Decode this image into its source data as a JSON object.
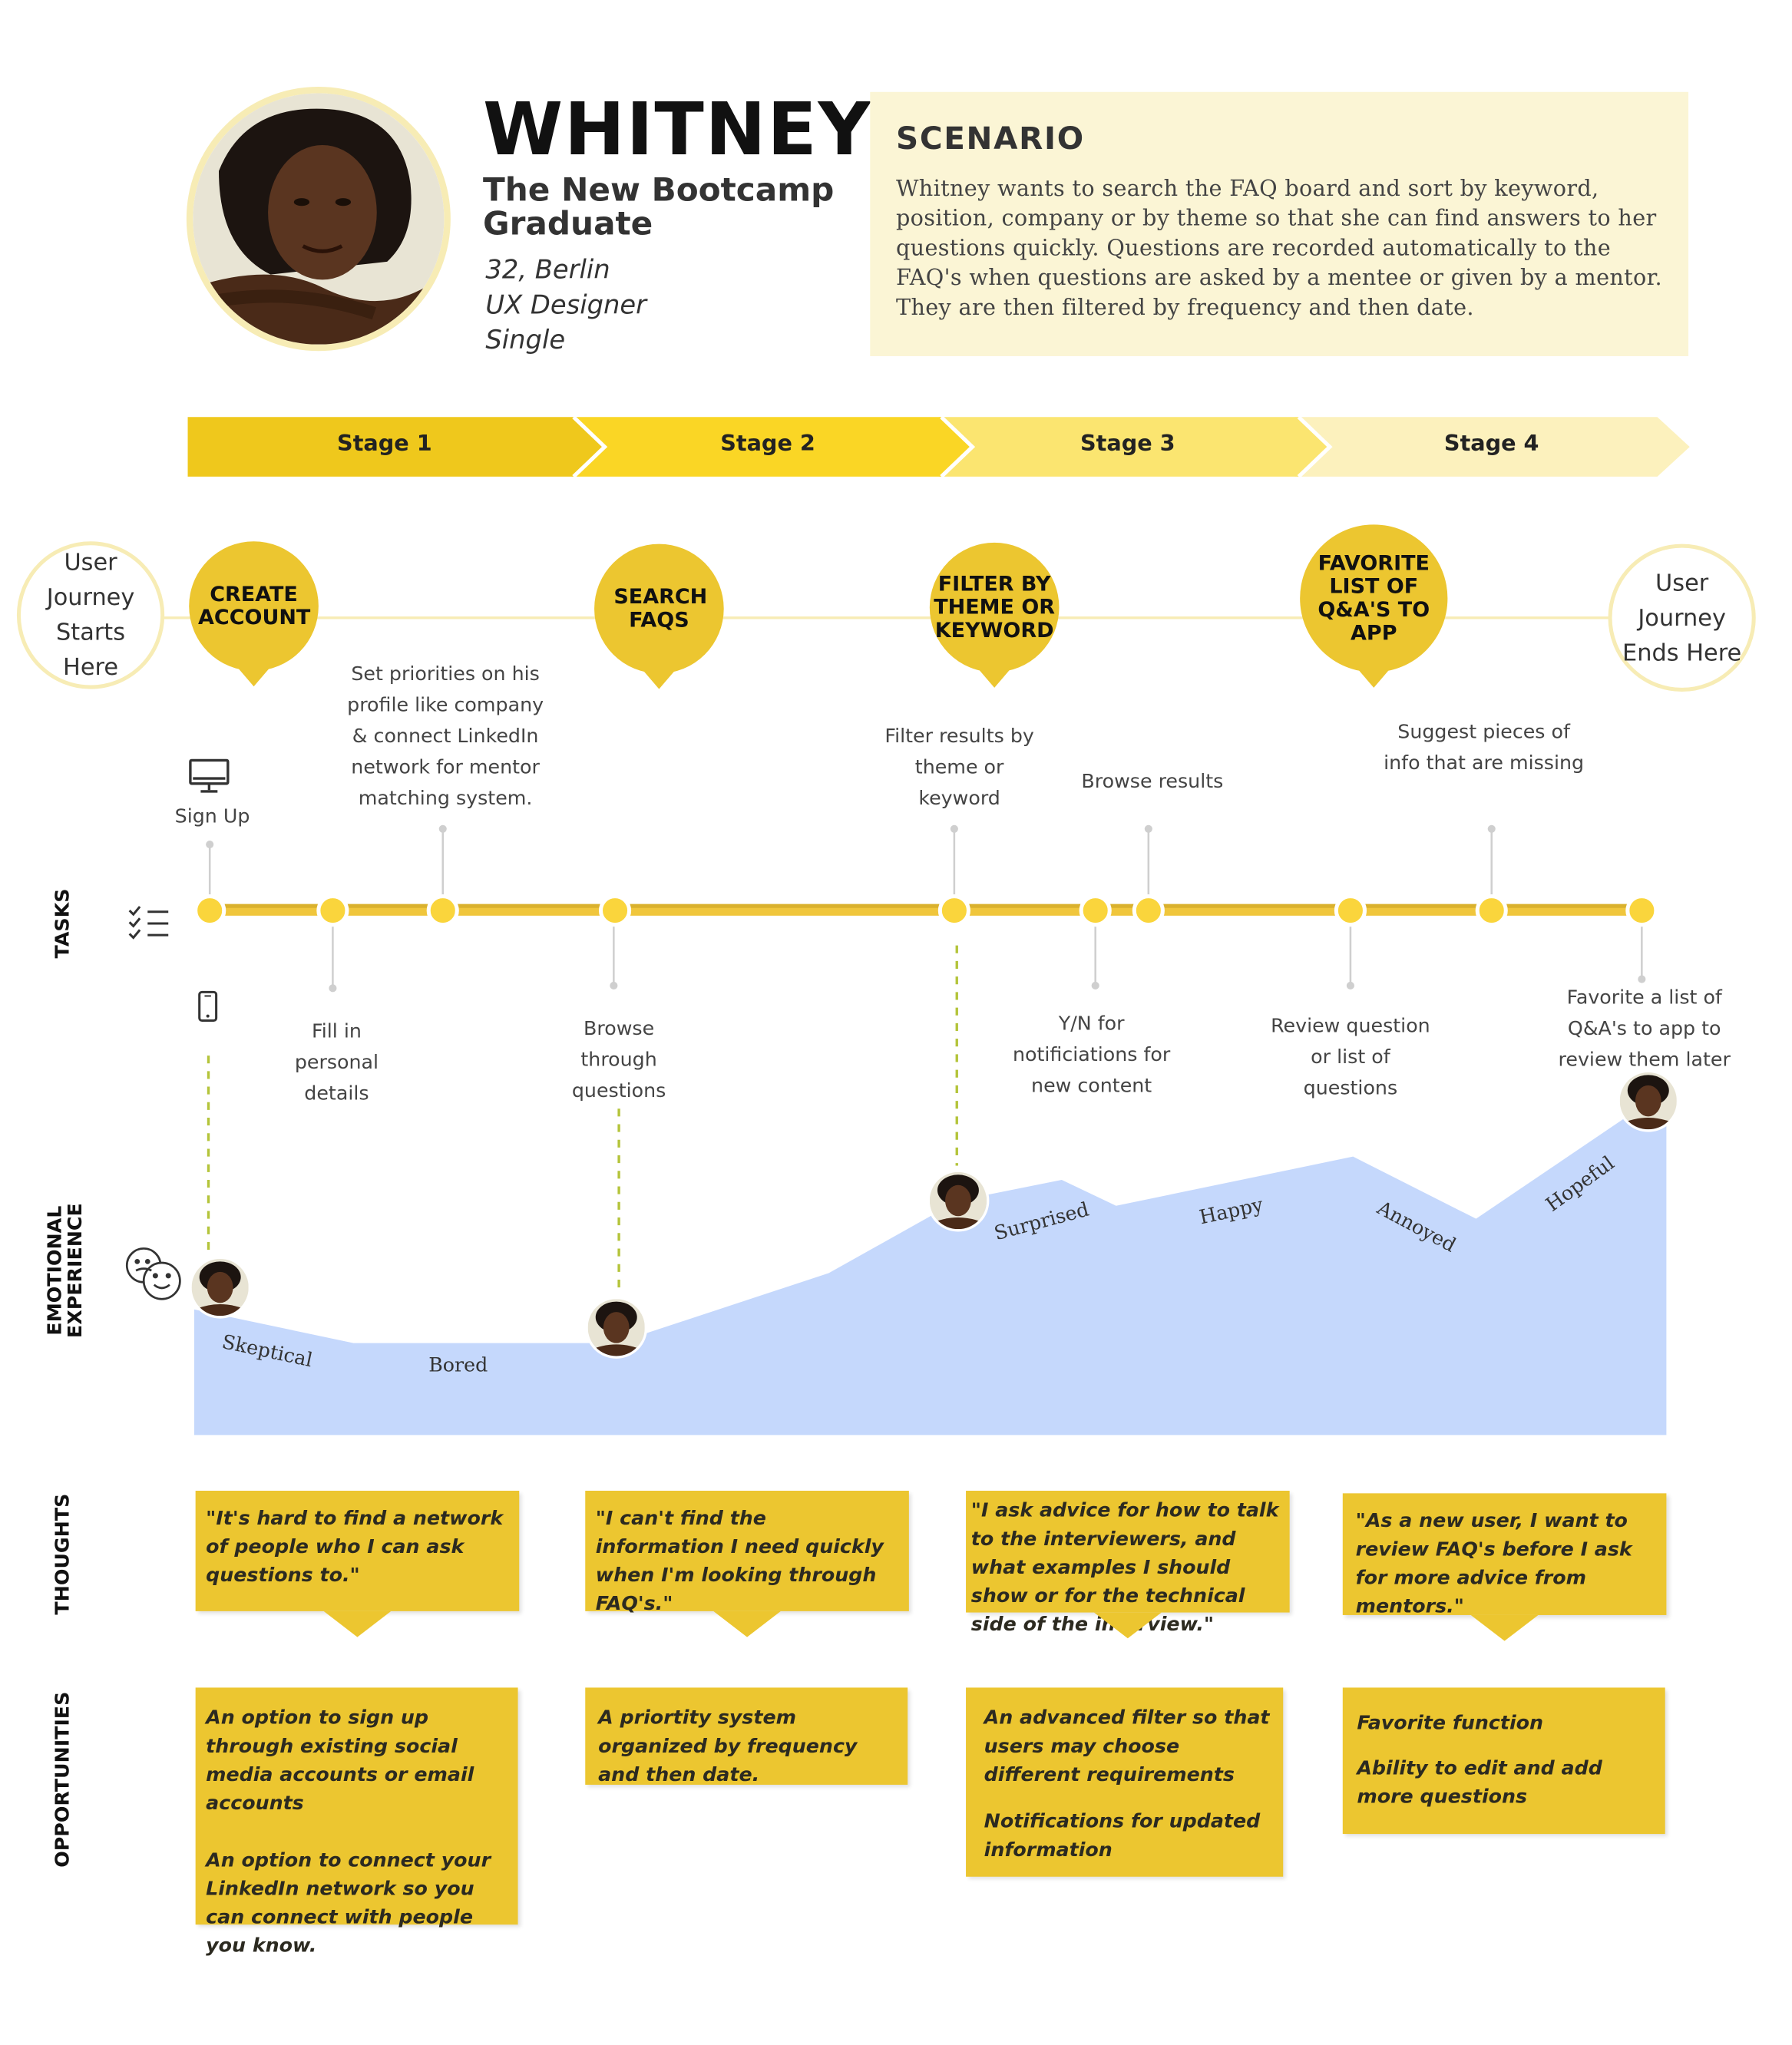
{
  "persona": {
    "name": "WHITNEY",
    "title": "The New Bootcamp Graduate",
    "age_city": "32, Berlin",
    "role": "UX Designer",
    "status": "Single"
  },
  "scenario": {
    "heading": "SCENARIO",
    "text": "Whitney wants to search the FAQ board and sort by keyword, position, company or by theme so that she can find answers to her questions quickly. Questions are recorded automatically to the FAQ's when questions are asked by a mentee or given by a mentor. They are then filtered by frequency and then date."
  },
  "stages": [
    "Stage 1",
    "Stage 2",
    "Stage 3",
    "Stage 4"
  ],
  "journey": {
    "start_label": "User Journey Starts Here",
    "end_label": "User Journey Ends Here",
    "steps": [
      "CREATE ACCOUNT",
      "SEARCH FAQS",
      "FILTER BY THEME OR KEYWORD",
      "FAVORITE LIST OF Q&A'S TO APP"
    ]
  },
  "row_labels": {
    "tasks": "TASKS",
    "emotional_line1": "EMOTIONAL",
    "emotional_line2": "EXPERIENCE",
    "thoughts": "THOUGHTS",
    "opportunities": "OPPORTUNITIES"
  },
  "tasks": {
    "sign_up": "Sign Up",
    "set_priorities": "Set priorities on his profile like company & connect LinkedIn network for mentor matching system.",
    "filter_results": "Filter results by theme or keyword",
    "browse_results": "Browse results",
    "suggest_pieces": "Suggest pieces of info that are missing",
    "fill_in": "Fill in personal details",
    "browse_through": "Browse through questions",
    "yn_notifications": "Y/N for notificiations for new content",
    "review_question": "Review question or list of questions",
    "favorite_list": "Favorite a list of Q&A's to app to review them later"
  },
  "emotions": [
    "Skeptical",
    "Bored",
    "Surprised",
    "Happy",
    "Annoyed",
    "Hopeful"
  ],
  "thoughts": [
    "\"It's hard to find a network of people who I can ask questions to.\"",
    "\"I can't find the information I need quickly when I'm looking through FAQ's.\"",
    "\"I ask advice for how to talk to the interviewers, and what examples I should show or for the technical side of the interview.\"",
    "\"As a new user, I want to review FAQ's before I ask for more advice from mentors.\""
  ],
  "opportunities": {
    "col1_a": "An option to sign up through existing social media accounts or email accounts",
    "col1_b": "An option to connect your LinkedIn network so you can connect with people you know.",
    "col2_a": "A  priortity system organized by frequency and then date.",
    "col3_a": "An advanced filter so that users may choose different requirements",
    "col3_b": "Notifications for updated information",
    "col4_a": "Favorite function",
    "col4_b": "Ability to edit and add more questions"
  },
  "colors": {
    "accent_yellow": "#ecc630",
    "stage1": "#efc81c",
    "stage2": "#fad625",
    "stage3": "#fbe570",
    "stage4": "#fcf1bd",
    "scenario_bg": "#fbf5d5",
    "emotion_area": "#c5d8fc"
  },
  "icons": [
    "monitor-icon",
    "phone-icon",
    "checklist-icon",
    "faces-icon",
    "thought-cloud-icon",
    "lightbulb-icon"
  ]
}
